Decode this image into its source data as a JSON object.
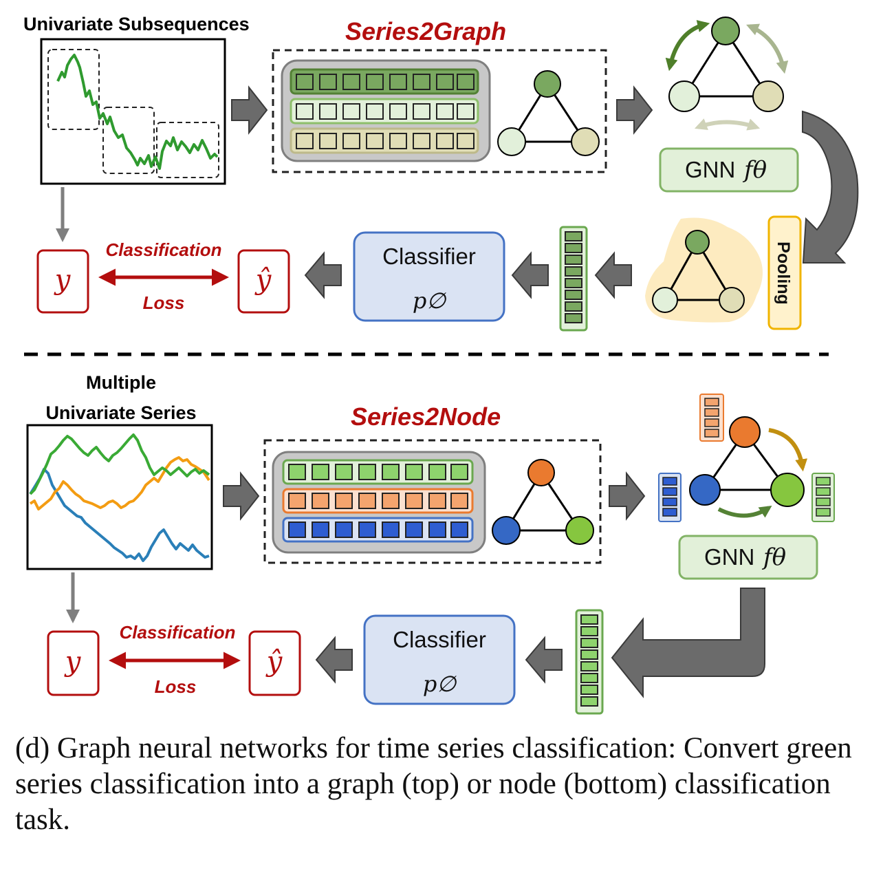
{
  "top": {
    "input_label": "Univariate Subsequences",
    "method_title": "Series2Graph",
    "gnn_label": "GNN",
    "gnn_symbol": "fθ",
    "pooling_label": "Pooling",
    "classifier_label": "Classifier",
    "classifier_symbol": "p∅",
    "y_label": "y",
    "yhat_label": "ŷ",
    "loss_label_top": "Classification",
    "loss_label_bottom": "Loss"
  },
  "bottom": {
    "input_label_line1": "Multiple",
    "input_label_line2": "Univariate Series",
    "method_title": "Series2Node",
    "gnn_label": "GNN",
    "gnn_symbol": "fθ",
    "classifier_label": "Classifier",
    "classifier_symbol": "p∅",
    "y_label": "y",
    "yhat_label": "ŷ",
    "loss_label_top": "Classification",
    "loss_label_bottom": "Loss"
  },
  "caption": "(d) Graph neural networks for time series classification: Convert green series classification into a graph (top) or node (bottom) classification task.",
  "colors": {
    "green_dark": "#7aa860",
    "green_light": "#e2f0da",
    "beige": "#e0ddb6",
    "orange": "#ea7a2f",
    "blue": "#3568c5",
    "lime": "#86c63f",
    "red": "#b30e0e",
    "gray_arrow": "#6b6b6b",
    "classifier_fill": "#dae3f3",
    "gnn_fill": "#e2f0d9",
    "pooling_fill": "#fff2cc"
  }
}
